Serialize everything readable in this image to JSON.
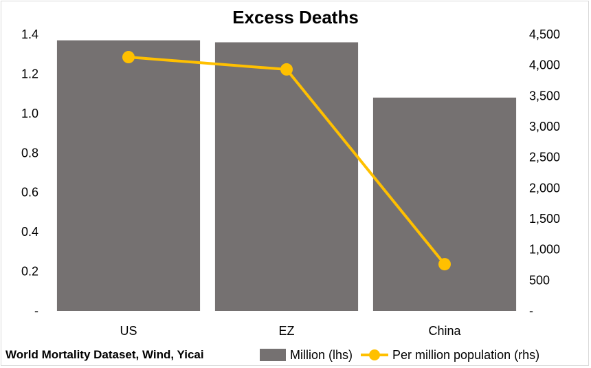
{
  "chart_data": {
    "type": "bar",
    "title": "Excess Deaths",
    "source": "World Mortality Dataset, Wind, Yicai",
    "categories": [
      "US",
      "EZ",
      "China"
    ],
    "left_axis": {
      "min": 0,
      "max": 1.4,
      "ticks": [
        0,
        0.2,
        0.4,
        0.6,
        0.8,
        1.0,
        1.2,
        1.4
      ],
      "tick_labels": [
        "-",
        "0.2",
        "0.4",
        "0.6",
        "0.8",
        "1.0",
        "1.2",
        "1.4"
      ]
    },
    "right_axis": {
      "min": 0,
      "max": 4500,
      "ticks": [
        0,
        500,
        1000,
        1500,
        2000,
        2500,
        3000,
        3500,
        4000,
        4500
      ],
      "tick_labels": [
        "-",
        "500",
        "1,000",
        "1,500",
        "2,000",
        "2,500",
        "3,000",
        "3,500",
        "4,000",
        "4,500"
      ]
    },
    "grid": false,
    "legend_position": "bottom",
    "series": [
      {
        "name": "Million (lhs)",
        "type": "bar",
        "axis": "left",
        "color": "#757171",
        "values": [
          1.37,
          1.36,
          1.08
        ]
      },
      {
        "name": "Per million population (rhs)",
        "type": "line",
        "axis": "right",
        "color": "#ffc000",
        "values": [
          4130,
          3930,
          760
        ]
      }
    ]
  }
}
